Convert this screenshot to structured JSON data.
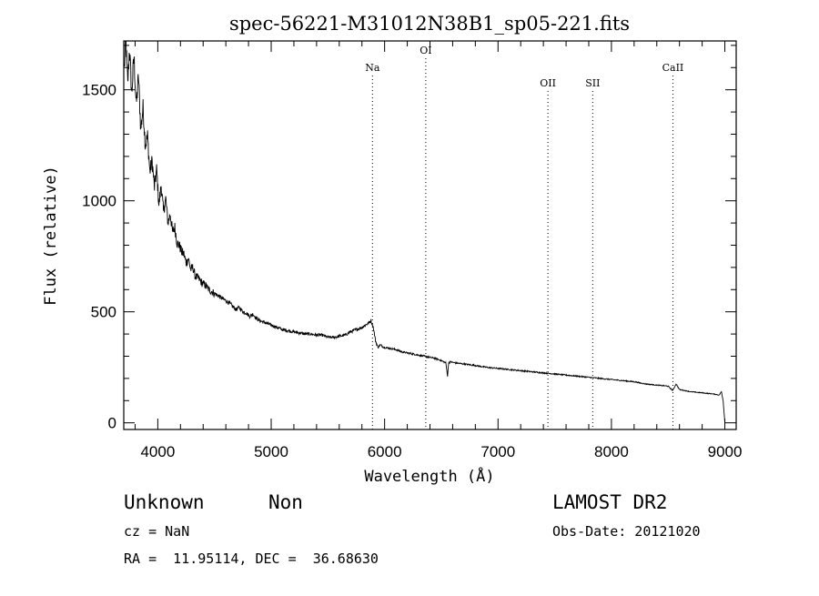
{
  "chart_data": {
    "type": "line",
    "title": "spec-56221-M31012N38B1_sp05-221.fits",
    "xlabel": "Wavelength (Å)",
    "ylabel": "Flux (relative)",
    "xlim": [
      3700,
      9100
    ],
    "ylim": [
      -30,
      1720
    ],
    "xticks": [
      4000,
      5000,
      6000,
      7000,
      8000,
      9000
    ],
    "yticks": [
      0,
      500,
      1000,
      1500
    ],
    "x_minor_step": 200,
    "y_minor_step": 100,
    "grid": false,
    "series": [
      {
        "name": "",
        "x": [
          3705,
          3720,
          3735,
          3750,
          3770,
          3790,
          3810,
          3830,
          3850,
          3870,
          3890,
          3910,
          3930,
          3950,
          3970,
          3990,
          4010,
          4030,
          4050,
          4070,
          4090,
          4110,
          4130,
          4150,
          4170,
          4190,
          4210,
          4230,
          4250,
          4270,
          4290,
          4310,
          4330,
          4360,
          4390,
          4420,
          4450,
          4480,
          4510,
          4540,
          4570,
          4600,
          4630,
          4660,
          4690,
          4720,
          4750,
          4780,
          4810,
          4840,
          4870,
          4900,
          4950,
          5000,
          5050,
          5100,
          5150,
          5200,
          5250,
          5300,
          5350,
          5400,
          5450,
          5500,
          5550,
          5600,
          5650,
          5700,
          5750,
          5800,
          5830,
          5860,
          5880,
          5900,
          5920,
          5940,
          5960,
          6000,
          6050,
          6100,
          6150,
          6200,
          6250,
          6300,
          6350,
          6400,
          6450,
          6500,
          6540,
          6555,
          6565,
          6580,
          6620,
          6700,
          6800,
          6900,
          7000,
          7100,
          7200,
          7300,
          7400,
          7500,
          7600,
          7700,
          7800,
          7900,
          8000,
          8100,
          8200,
          8300,
          8400,
          8500,
          8540,
          8570,
          8600,
          8700,
          8800,
          8900,
          8950,
          8970,
          8985,
          9000
        ],
        "values": [
          1600,
          1720,
          1520,
          1690,
          1480,
          1650,
          1430,
          1560,
          1320,
          1420,
          1250,
          1290,
          1130,
          1180,
          1060,
          1140,
          980,
          1070,
          950,
          1010,
          900,
          940,
          860,
          880,
          810,
          800,
          770,
          760,
          720,
          740,
          690,
          700,
          660,
          650,
          630,
          620,
          600,
          590,
          580,
          570,
          560,
          550,
          540,
          525,
          510,
          520,
          500,
          495,
          480,
          490,
          470,
          460,
          450,
          440,
          430,
          420,
          415,
          410,
          405,
          400,
          400,
          395,
          395,
          385,
          385,
          390,
          395,
          410,
          420,
          430,
          440,
          450,
          460,
          430,
          370,
          340,
          350,
          340,
          335,
          330,
          320,
          315,
          310,
          305,
          300,
          295,
          290,
          280,
          270,
          210,
          270,
          275,
          270,
          265,
          258,
          250,
          245,
          240,
          235,
          230,
          225,
          220,
          215,
          210,
          205,
          200,
          195,
          190,
          185,
          175,
          170,
          165,
          145,
          175,
          150,
          140,
          135,
          130,
          125,
          140,
          100,
          0
        ]
      }
    ],
    "lines": [
      {
        "label": "Na",
        "x": 5893,
        "row": 1
      },
      {
        "label": "OI",
        "x": 6363,
        "row": 0
      },
      {
        "label": "OII",
        "x": 7440,
        "row": 2
      },
      {
        "label": "SII",
        "x": 7835,
        "row": 2
      },
      {
        "label": "CaII",
        "x": 8542,
        "row": 1
      }
    ]
  },
  "info": {
    "class": "Unknown",
    "subclass": "Non",
    "survey": "LAMOST DR2",
    "cz": "cz = NaN",
    "obs_date": "Obs-Date: 20121020",
    "coords": "RA =  11.95114, DEC =  36.68630"
  }
}
